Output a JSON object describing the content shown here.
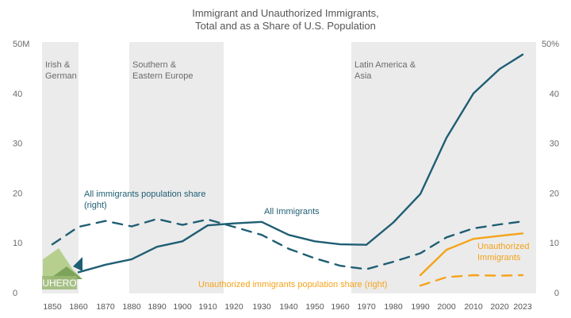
{
  "chart_data": {
    "type": "line",
    "title": "Immigrant and Unauthorized Immigrants,",
    "subtitle": "Total and as a Share of U.S. Population",
    "x_ticks": [
      "1850",
      "1860",
      "1870",
      "1880",
      "1890",
      "1900",
      "1910",
      "1920",
      "1930",
      "1940",
      "1950",
      "1960",
      "1970",
      "1980",
      "1990",
      "2000",
      "2010",
      "2020",
      "2023"
    ],
    "y_left": {
      "ticks": [
        "0",
        "10",
        "20",
        "30",
        "40",
        "50M"
      ],
      "range": [
        0,
        50
      ]
    },
    "y_right": {
      "ticks": [
        "0",
        "10",
        "20",
        "30",
        "40",
        "50%"
      ],
      "range": [
        0,
        50
      ]
    },
    "eras": [
      {
        "label_line1": "Irish &",
        "label_line2": "German",
        "x_start": 1850,
        "x_end": 1860
      },
      {
        "label_line1": "Southern &",
        "label_line2": "Eastern Europe",
        "x_start": 1880,
        "x_end": 1920
      },
      {
        "label_line1": "Latin America &",
        "label_line2": "Asia",
        "x_start": 1965,
        "x_end": 2023
      }
    ],
    "series": [
      {
        "name": "All Immigrants",
        "axis": "left",
        "style": "solid",
        "color": "#1f5e73",
        "x": [
          1860,
          1870,
          1880,
          1890,
          1900,
          1910,
          1920,
          1930,
          1940,
          1950,
          1960,
          1970,
          1980,
          1990,
          2000,
          2010,
          2020,
          2023
        ],
        "y": [
          4.1,
          5.6,
          6.7,
          9.2,
          10.3,
          13.5,
          13.9,
          14.2,
          11.6,
          10.3,
          9.7,
          9.6,
          14.1,
          19.8,
          31.1,
          40.0,
          44.9,
          47.8
        ]
      },
      {
        "name": "All immigrants population share (right)",
        "axis": "right",
        "style": "dashed",
        "color": "#1f5e73",
        "x": [
          1850,
          1860,
          1870,
          1880,
          1890,
          1900,
          1910,
          1920,
          1930,
          1940,
          1950,
          1960,
          1970,
          1980,
          1990,
          2000,
          2010,
          2020,
          2023
        ],
        "y": [
          9.7,
          13.2,
          14.4,
          13.3,
          14.8,
          13.6,
          14.7,
          13.2,
          11.6,
          8.8,
          6.9,
          5.4,
          4.7,
          6.2,
          7.9,
          11.1,
          12.9,
          13.7,
          14.3
        ]
      },
      {
        "name": "Unauthorized Immigrants",
        "axis": "left",
        "style": "solid",
        "color": "#f5a31a",
        "x": [
          1990,
          2000,
          2010,
          2020,
          2023
        ],
        "y": [
          3.5,
          8.6,
          10.8,
          11.4,
          11.9
        ]
      },
      {
        "name": "Unauthorized immigrants population share (right)",
        "axis": "right",
        "style": "dashed",
        "color": "#f5a31a",
        "x": [
          1990,
          2000,
          2010,
          2020,
          2023
        ],
        "y": [
          1.4,
          3.1,
          3.5,
          3.4,
          3.5
        ]
      }
    ],
    "labels": {
      "all_share_line1": "All immigrants population share",
      "all_share_line2": "(right)",
      "all_immigrants": "All Immigrants",
      "unauth_line1": "Unauthorized",
      "unauth_line2": "Immigrants",
      "unauth_share": "Unauthorized immigrants population share (right)"
    },
    "logo_text": "UHERO",
    "colors": {
      "band": "#ebebeb",
      "teal": "#1f5e73",
      "orange": "#f5a31a",
      "text": "#6b6b6b",
      "logo_green": "#9ab874"
    }
  }
}
